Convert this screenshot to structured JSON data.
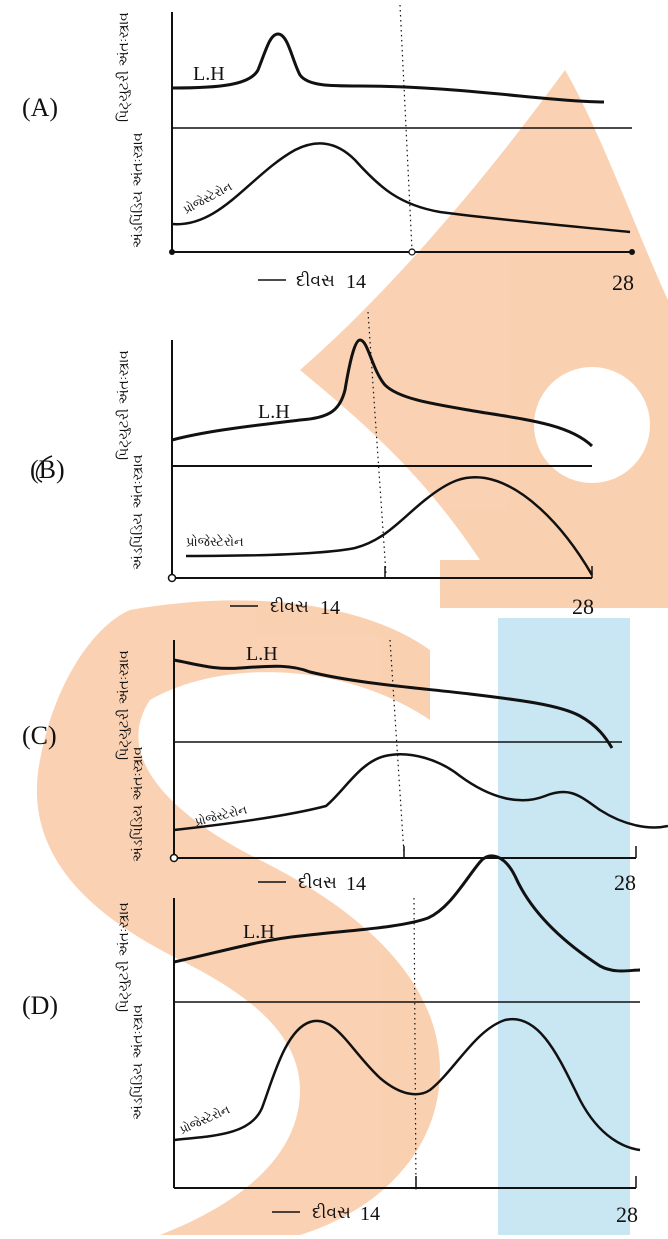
{
  "colors": {
    "ink": "#111111",
    "watermark_orange": "#f9c9a4",
    "watermark_blue": "#bfe2f1"
  },
  "options": [
    {
      "label": "(A)",
      "pituitary_label": "પિટ્યુટરી અંતઃસ્ત્રાવ",
      "ovarian_label": "અંડપિંડિય અંતઃસ્ત્રાવ",
      "lh_label": "L.H",
      "progesterone_label": "પ્રોજેસ્ટેરોન",
      "days_label": "દીવસ",
      "day_mid": "14",
      "day_end": "28"
    },
    {
      "label": "(B)",
      "pituitary_label": "પિટ્યુટરી અંતઃસ્ત્રાવ",
      "ovarian_label": "અંડપિંડિય અંતઃસ્ત્રાવ",
      "lh_label": "L.H",
      "progesterone_label": "પ્રોજેસ્ટેરોન",
      "days_label": "દીવસ",
      "day_mid": "14",
      "day_end": "28"
    },
    {
      "label": "(C)",
      "pituitary_label": "પિટ્યુટરી અંતઃસ્ત્રાવ",
      "ovarian_label": "અંડપિંડિય અંતઃસ્ત્રાવ",
      "lh_label": "L.H",
      "progesterone_label": "પ્રોજેસ્ટેરોન",
      "days_label": "દીવસ",
      "day_mid": "14",
      "day_end": "28"
    },
    {
      "label": "(D)",
      "pituitary_label": "પિટ્યુટરી અંતઃસ્ત્રાવ",
      "ovarian_label": "અંડપિંડિય અંતઃસ્ત્રાવ",
      "lh_label": "L.H",
      "progesterone_label": "પ્રોજેસ્ટેરોન",
      "days_label": "દીવસ",
      "day_mid": "14",
      "day_end": "28"
    }
  ]
}
